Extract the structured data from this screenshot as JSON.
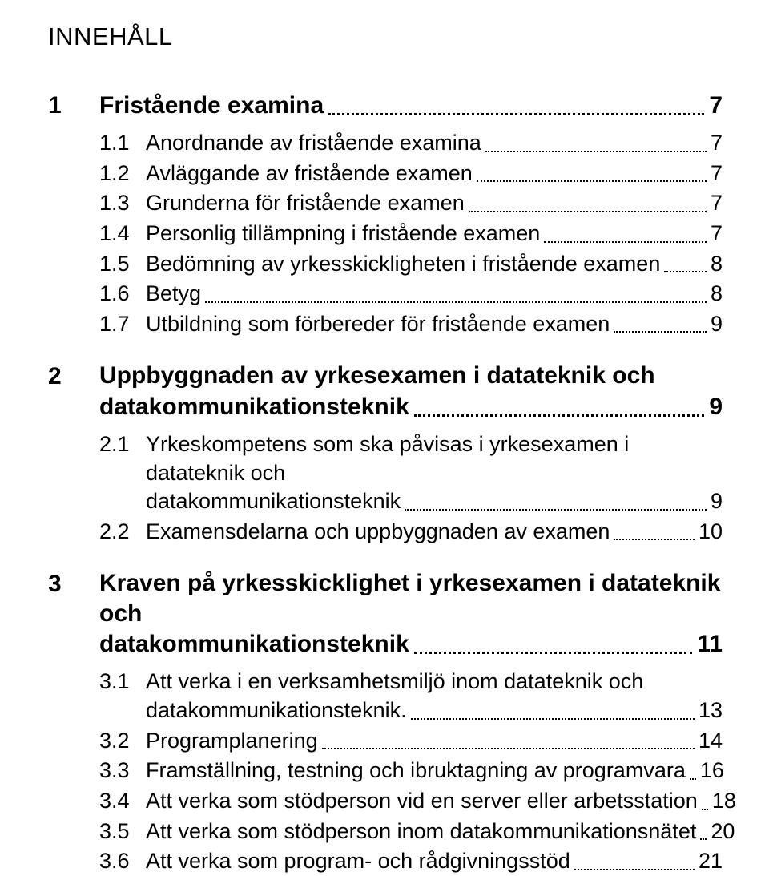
{
  "doc_title": "INNEHÅLL",
  "style": {
    "page_bg": "#ffffff",
    "text_color": "#000000",
    "title_fontsize_pt": 23,
    "level1_fontsize_pt": 22,
    "level2_fontsize_pt": 20,
    "level1_weight": 700,
    "level2_weight": 400,
    "leader_style": "dotted"
  },
  "sections": [
    {
      "num": "1",
      "title_last": "Fristående examina",
      "page": "7",
      "items": [
        {
          "num": "1.1",
          "title_last": "Anordnande av fristående examina",
          "page": "7"
        },
        {
          "num": "1.2",
          "title_last": "Avläggande av fristående examen",
          "page": "7"
        },
        {
          "num": "1.3",
          "title_last": "Grunderna för fristående examen",
          "page": "7"
        },
        {
          "num": "1.4",
          "title_last": "Personlig tillämpning i fristående examen",
          "page": "7"
        },
        {
          "num": "1.5",
          "title_last": "Bedömning av yrkesskickligheten i fristående examen",
          "page": "8"
        },
        {
          "num": "1.6",
          "title_last": "Betyg",
          "page": "8"
        },
        {
          "num": "1.7",
          "title_last": "Utbildning som förbereder för fristående examen",
          "page": "9"
        }
      ]
    },
    {
      "num": "2",
      "title_pre": "Uppbyggnaden av yrkesexamen i datateknik och",
      "title_last": "datakommunikationsteknik",
      "page": "9",
      "items": [
        {
          "num": "2.1",
          "title_pre": "Yrkeskompetens som ska påvisas i yrkesexamen i datateknik och",
          "title_last": "datakommunikationsteknik",
          "page": "9"
        },
        {
          "num": "2.2",
          "title_last": "Examensdelarna och uppbyggnaden av examen",
          "page": "10"
        }
      ]
    },
    {
      "num": "3",
      "title_pre": "Kraven på yrkesskicklighet i yrkesexamen i datateknik och",
      "title_last": "datakommunikationsteknik",
      "page": "11",
      "items": [
        {
          "num": "3.1",
          "title_pre": "Att verka i en verksamhetsmiljö inom datateknik och",
          "title_last": "datakommunikationsteknik.",
          "page": "13"
        },
        {
          "num": "3.2",
          "title_last": "Programplanering",
          "page": "14"
        },
        {
          "num": "3.3",
          "title_last": "Framställning, testning och ibruktagning av programvara",
          "page": "16"
        },
        {
          "num": "3.4",
          "title_last": "Att verka som stödperson vid en server eller arbetsstation",
          "page": "18"
        },
        {
          "num": "3.5",
          "title_last": "Att verka som stödperson inom datakommunikationsnätet",
          "page": "20"
        },
        {
          "num": "3.6",
          "title_last": "Att verka som program- och rådgivningsstöd",
          "page": "21"
        }
      ]
    }
  ]
}
